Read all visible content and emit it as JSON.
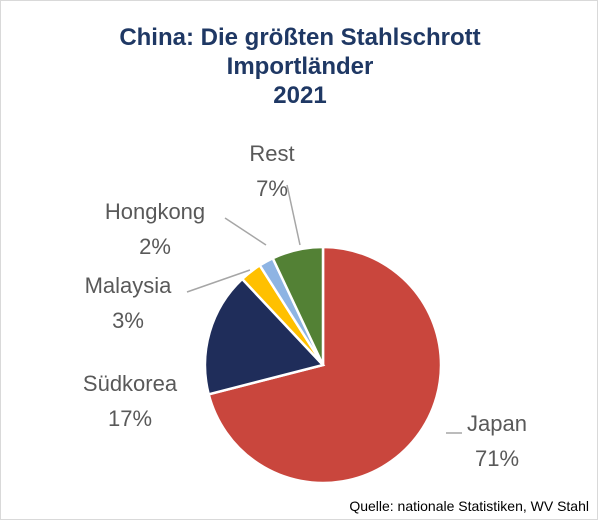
{
  "chart_data": {
    "type": "pie",
    "title": "China: Die größten Stahlschrott Importländer",
    "subtitle": "2021",
    "categories": [
      "Japan",
      "Südkorea",
      "Malaysia",
      "Hongkong",
      "Rest"
    ],
    "values": [
      71,
      17,
      3,
      2,
      7
    ],
    "value_labels": [
      "71%",
      "17%",
      "3%",
      "2%",
      "7%"
    ],
    "colors": [
      "#c9463d",
      "#1f2d5a",
      "#ffc000",
      "#8eb4e3",
      "#538135"
    ],
    "source": "Quelle: nationale Statistiken, WV Stahl"
  }
}
